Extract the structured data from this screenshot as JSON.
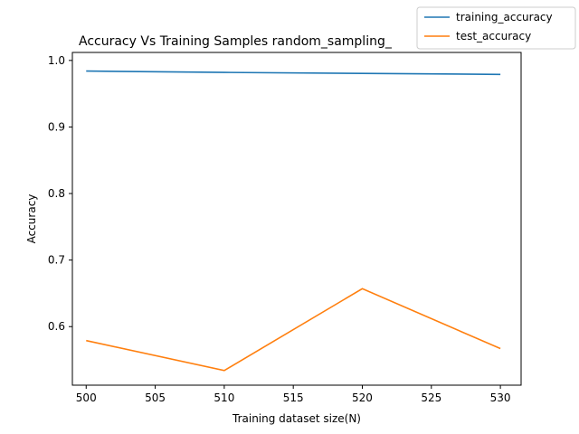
{
  "chart_data": {
    "type": "line",
    "title": "Accuracy Vs Training Samples  random_sampling_",
    "xlabel": "Training dataset size(N)",
    "ylabel": "Accuracy",
    "x": [
      500,
      510,
      520,
      530
    ],
    "xlim": [
      499,
      531.5
    ],
    "ylim": [
      0.512,
      1.012
    ],
    "xticks": [
      500,
      505,
      510,
      515,
      520,
      525,
      530
    ],
    "yticks": [
      0.6,
      0.7,
      0.8,
      0.9,
      1.0
    ],
    "ytick_labels": [
      "0.6",
      "0.7",
      "0.8",
      "0.9",
      "1.0"
    ],
    "grid": false,
    "legend_position": "top-right (outside, above plot)",
    "series": [
      {
        "name": "training_accuracy",
        "color": "#1f77b4",
        "values": [
          0.984,
          0.982,
          0.9805,
          0.979
        ]
      },
      {
        "name": "test_accuracy",
        "color": "#ff7f0e",
        "values": [
          0.579,
          0.534,
          0.657,
          0.567
        ]
      }
    ]
  }
}
